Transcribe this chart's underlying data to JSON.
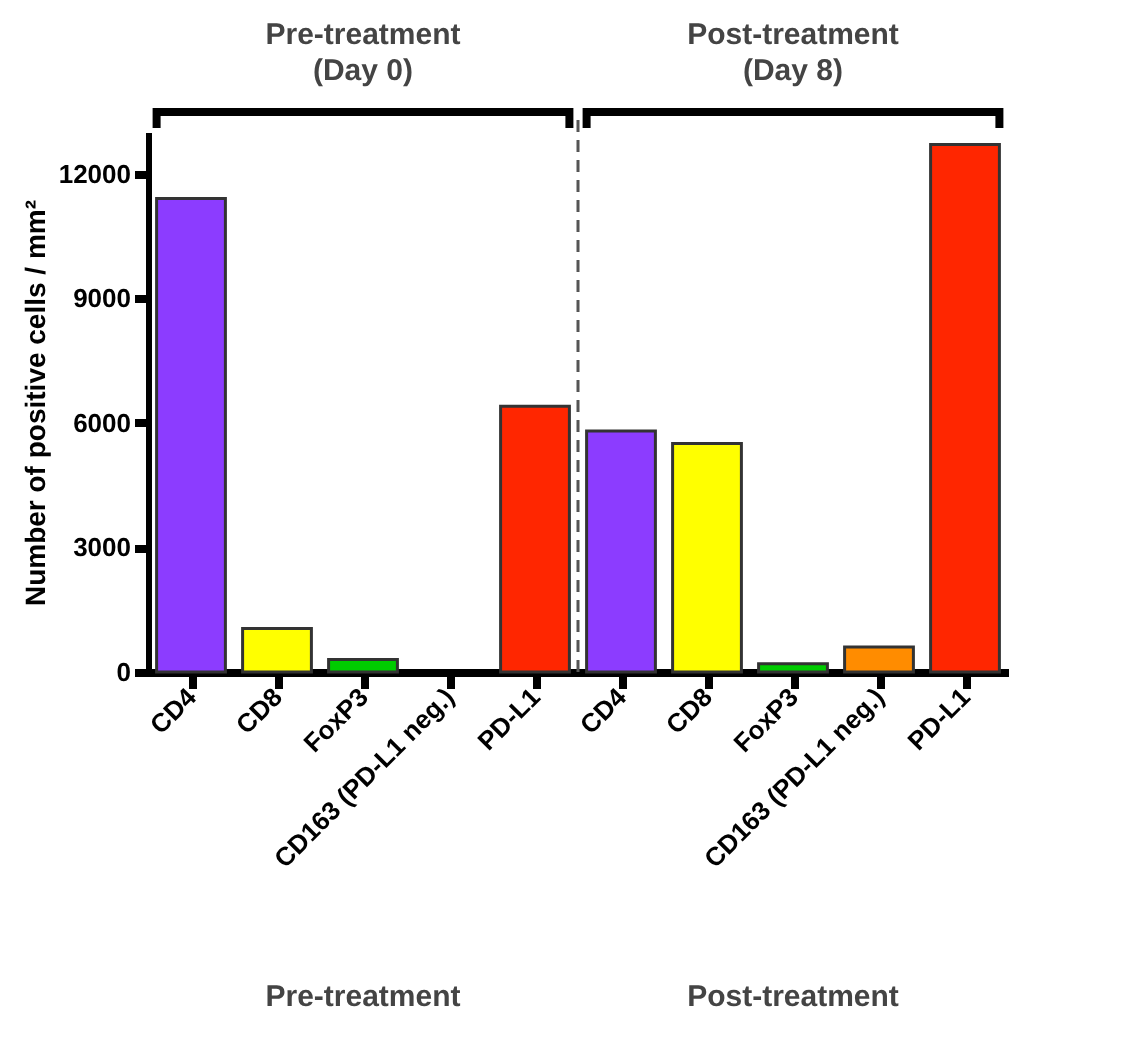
{
  "chart_data": {
    "type": "bar",
    "ylabel": "Number of positive cells / mm²",
    "categories": [
      "CD4",
      "CD8",
      "FoxP3",
      "CD163 (PD-L1 neg.)",
      "PD-L1",
      "CD4",
      "CD8",
      "FoxP3",
      "CD163 (PD-L1 neg.)",
      "PD-L1"
    ],
    "values": [
      11400,
      1050,
      300,
      0,
      6400,
      5800,
      5500,
      200,
      600,
      12700
    ],
    "colors": [
      "#8c3cff",
      "#ffff00",
      "#00cc00",
      null,
      "#ff2600",
      "#8c3cff",
      "#ffff00",
      "#00cc00",
      "#ff8c00",
      "#ff2600"
    ],
    "ylim": [
      0,
      13000
    ],
    "yticks": [
      0,
      3000,
      6000,
      9000,
      12000
    ],
    "grid": false,
    "annotations": [
      "Pre-treatment\n(Day 0)",
      "Post-treatment\n(Day 8)",
      "Pre-treatment",
      "Post-treatment"
    ]
  }
}
